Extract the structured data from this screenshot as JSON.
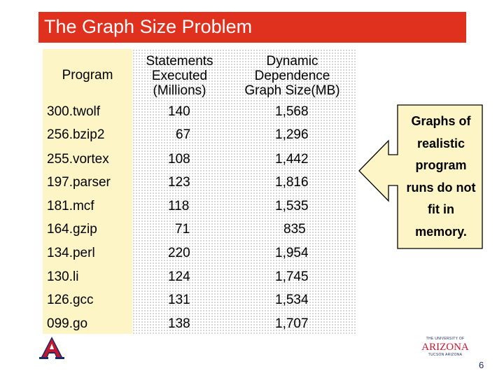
{
  "slide": {
    "title": "The Graph Size Problem",
    "page_number": "6"
  },
  "table": {
    "headers": {
      "program": "Program",
      "statements": [
        "Statements",
        "Executed",
        "(Millions)"
      ],
      "graph": [
        "Dynamic",
        "Dependence",
        "Graph Size(MB)"
      ]
    },
    "rows": [
      {
        "program": "300.twolf",
        "statements": "140",
        "graph_size": "1,568"
      },
      {
        "program": "256.bzip2",
        "statements": "67",
        "graph_size": "1,296"
      },
      {
        "program": "255.vortex",
        "statements": "108",
        "graph_size": "1,442"
      },
      {
        "program": "197.parser",
        "statements": "123",
        "graph_size": "1,816"
      },
      {
        "program": "181.mcf",
        "statements": "118",
        "graph_size": "1,535"
      },
      {
        "program": "164.gzip",
        "statements": "71",
        "graph_size": "835"
      },
      {
        "program": "134.perl",
        "statements": "220",
        "graph_size": "1,954"
      },
      {
        "program": "130.li",
        "statements": "124",
        "graph_size": "1,745"
      },
      {
        "program": "126.gcc",
        "statements": "131",
        "graph_size": "1,534"
      },
      {
        "program": "099.go",
        "statements": "138",
        "graph_size": "1,707"
      }
    ]
  },
  "callout": {
    "lines": [
      "Graphs of",
      "realistic",
      "program",
      "runs do not",
      "fit in",
      "memory."
    ]
  },
  "branding": {
    "university_small": "THE UNIVERSITY OF",
    "university_name": "ARIZONA",
    "university_city": "TUCSON ARIZONA"
  },
  "colors": {
    "title_bar": "#e0301e",
    "callout_fill": "#fdf5c6",
    "arizona_red": "#c4162f",
    "arizona_blue": "#1b2a6b"
  }
}
